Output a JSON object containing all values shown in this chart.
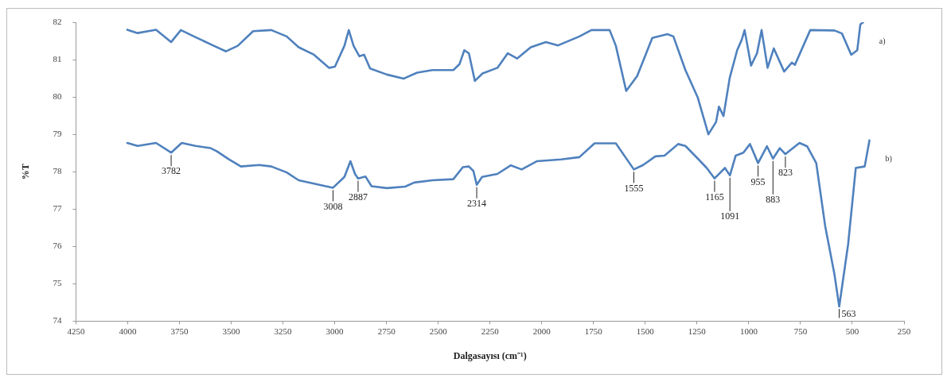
{
  "chart_data": {
    "type": "line",
    "xlabel": "Dalgasayısı (cm⁻¹)",
    "ylabel": "%T",
    "xlim": [
      4250,
      250
    ],
    "xticks": [
      4250,
      4000,
      3750,
      3500,
      3250,
      3000,
      2750,
      2500,
      2250,
      2000,
      1750,
      1500,
      1250,
      1000,
      750,
      500,
      250
    ],
    "ylim": [
      74,
      82
    ],
    "yticks": [
      74,
      75,
      76,
      77,
      78,
      79,
      80,
      81,
      82
    ],
    "grid": false,
    "legend": false,
    "series": [
      {
        "name": "a)",
        "color": "#4f81bd",
        "x": [
          4002,
          3952,
          3863,
          3790,
          3743,
          3672,
          3584,
          3525,
          3468,
          3394,
          3306,
          3232,
          3174,
          3100,
          3027,
          2999,
          2953,
          2932,
          2909,
          2881,
          2858,
          2829,
          2748,
          2667,
          2602,
          2528,
          2427,
          2397,
          2374,
          2352,
          2323,
          2286,
          2214,
          2164,
          2119,
          2053,
          1980,
          1921,
          1818,
          1760,
          1672,
          1642,
          1592,
          1539,
          1466,
          1393,
          1364,
          1306,
          1246,
          1195,
          1158,
          1144,
          1122,
          1092,
          1056,
          1034,
          1020,
          989,
          960,
          938,
          909,
          879,
          829,
          792,
          777,
          703,
          586,
          550,
          505,
          476,
          461,
          447
        ],
        "values": [
          81.8,
          81.71,
          81.8,
          81.47,
          81.79,
          81.6,
          81.37,
          81.22,
          81.37,
          81.76,
          81.79,
          81.62,
          81.33,
          81.13,
          80.78,
          80.81,
          81.37,
          81.79,
          81.37,
          81.09,
          81.13,
          80.76,
          80.6,
          80.49,
          80.65,
          80.72,
          80.72,
          80.88,
          81.25,
          81.17,
          80.43,
          80.63,
          80.78,
          81.17,
          81.03,
          81.33,
          81.47,
          81.38,
          81.62,
          81.79,
          81.79,
          81.37,
          80.16,
          80.56,
          81.58,
          81.68,
          81.62,
          80.72,
          79.98,
          79.0,
          79.33,
          79.74,
          79.49,
          80.51,
          81.25,
          81.53,
          81.79,
          80.84,
          81.17,
          81.79,
          80.78,
          81.3,
          80.68,
          80.92,
          80.86,
          81.79,
          81.78,
          81.7,
          81.13,
          81.25,
          81.94,
          82.0
        ]
      },
      {
        "name": "b)",
        "color": "#4f81bd",
        "x": [
          4002,
          3952,
          3863,
          3790,
          3739,
          3672,
          3599,
          3570,
          3511,
          3453,
          3365,
          3306,
          3232,
          3174,
          3100,
          3008,
          2953,
          2924,
          2902,
          2887,
          2851,
          2822,
          2748,
          2660,
          2616,
          2528,
          2427,
          2381,
          2352,
          2330,
          2314,
          2288,
          2214,
          2149,
          2097,
          2024,
          1906,
          1818,
          1745,
          1642,
          1555,
          1510,
          1451,
          1407,
          1341,
          1306,
          1246,
          1203,
          1165,
          1115,
          1091,
          1063,
          1026,
          994,
          955,
          912,
          883,
          850,
          823,
          755,
          718,
          674,
          631,
          586,
          563,
          520,
          483,
          440,
          417
        ],
        "values": [
          78.77,
          78.69,
          78.77,
          78.51,
          78.77,
          78.69,
          78.63,
          78.55,
          78.33,
          78.14,
          78.18,
          78.14,
          77.98,
          77.77,
          77.68,
          77.57,
          77.86,
          78.28,
          77.94,
          77.82,
          77.87,
          77.61,
          77.56,
          77.6,
          77.71,
          77.77,
          77.8,
          78.12,
          78.14,
          78.02,
          77.65,
          77.86,
          77.94,
          78.17,
          78.06,
          78.28,
          78.33,
          78.39,
          78.76,
          78.76,
          78.06,
          78.18,
          78.41,
          78.43,
          78.74,
          78.69,
          78.35,
          78.1,
          77.82,
          78.1,
          77.9,
          78.43,
          78.51,
          78.74,
          78.23,
          78.68,
          78.35,
          78.63,
          78.47,
          78.77,
          78.68,
          78.23,
          76.55,
          75.25,
          74.39,
          76.06,
          78.1,
          78.14,
          78.84
        ]
      }
    ],
    "annotations": [
      {
        "text": "3782",
        "x": 3790,
        "y": 78.51
      },
      {
        "text": "3008",
        "x": 3008,
        "y": 77.57
      },
      {
        "text": "2887",
        "x": 2887,
        "y": 77.82
      },
      {
        "text": "2314",
        "x": 2314,
        "y": 77.65
      },
      {
        "text": "1555",
        "x": 1555,
        "y": 78.06
      },
      {
        "text": "1165",
        "x": 1165,
        "y": 77.82
      },
      {
        "text": "1091",
        "x": 1091,
        "y": 77.9
      },
      {
        "text": "955",
        "x": 955,
        "y": 78.23
      },
      {
        "text": "883",
        "x": 883,
        "y": 78.35
      },
      {
        "text": "823",
        "x": 823,
        "y": 78.47
      },
      {
        "text": "563",
        "x": 563,
        "y": 74.39
      }
    ]
  }
}
